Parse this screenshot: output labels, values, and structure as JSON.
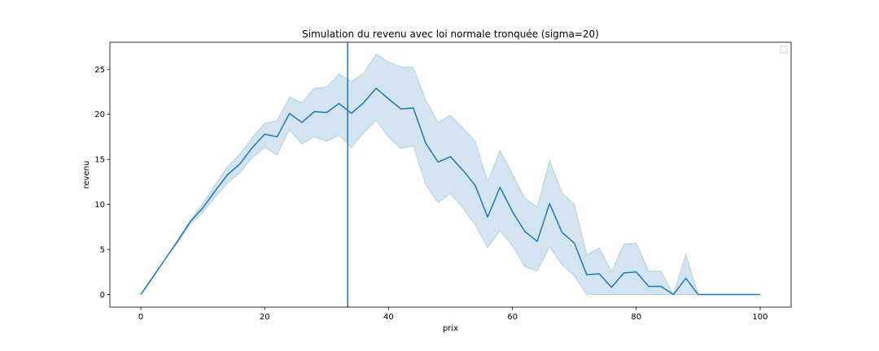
{
  "chart_data": {
    "type": "line",
    "title": "Simulation du revenu avec loi normale tronquée (sigma=20)",
    "xlabel": "prix",
    "ylabel": "revenu",
    "xlim": [
      -5,
      105
    ],
    "ylim": [
      -1.4,
      28
    ],
    "xticks": [
      0,
      20,
      40,
      60,
      80,
      100
    ],
    "yticks": [
      0,
      5,
      10,
      15,
      20,
      25
    ],
    "grid": false,
    "legend": "top-right, empty",
    "vline_x": 33.4,
    "colors": {
      "line": "#1f77b4",
      "band": "#1f77b4",
      "band_opacity": 0.2,
      "vline": "#1f77b4"
    },
    "series": [
      {
        "x": [
          0,
          2,
          4,
          6,
          8,
          10,
          12,
          14,
          16,
          18,
          20,
          22,
          24,
          26,
          28,
          30,
          32,
          34,
          36,
          38,
          40,
          42,
          44,
          46,
          48,
          50,
          52,
          54,
          56,
          58,
          60,
          62,
          64,
          66,
          68,
          70,
          72,
          74,
          76,
          78,
          80,
          82,
          84,
          86,
          88,
          90,
          92,
          94,
          96,
          98,
          100
        ],
        "y": [
          0,
          2.0,
          4.0,
          6.0,
          8.1,
          9.6,
          11.5,
          13.3,
          14.5,
          16.3,
          17.8,
          17.5,
          20.1,
          19.1,
          20.3,
          20.2,
          21.2,
          20.1,
          21.3,
          22.9,
          21.7,
          20.6,
          20.7,
          16.8,
          14.7,
          15.3,
          13.8,
          12.1,
          8.6,
          11.9,
          9.2,
          7.0,
          5.9,
          10.1,
          6.9,
          5.7,
          2.2,
          2.3,
          0.8,
          2.4,
          2.5,
          0.9,
          0.9,
          0.0,
          1.8,
          0.0,
          0.0,
          0.0,
          0.0,
          0.0,
          0.0
        ],
        "lower": [
          0,
          2.0,
          4.0,
          5.8,
          7.8,
          9.1,
          10.8,
          12.4,
          13.5,
          15.2,
          16.3,
          15.5,
          18.3,
          16.7,
          17.5,
          17.0,
          17.7,
          16.3,
          18.0,
          19.3,
          17.5,
          16.2,
          16.5,
          12.2,
          10.2,
          11.2,
          9.6,
          7.7,
          5.2,
          7.1,
          5.4,
          3.1,
          2.6,
          5.3,
          3.3,
          2.1,
          0.0,
          0.0,
          0.0,
          0.0,
          0.0,
          0.0,
          0.0,
          0.0,
          0.0,
          0.0,
          0.0,
          0.0,
          0.0,
          0.0,
          0.0
        ],
        "upper": [
          0,
          2.0,
          4.0,
          6.1,
          8.2,
          10.1,
          12.2,
          14.2,
          15.6,
          17.4,
          19.0,
          19.3,
          21.9,
          21.3,
          22.9,
          23.0,
          24.5,
          23.6,
          24.6,
          26.7,
          25.8,
          25.3,
          25.2,
          21.6,
          19.1,
          19.9,
          18.5,
          17.0,
          12.5,
          16.0,
          13.4,
          10.7,
          9.7,
          14.9,
          11.3,
          10.0,
          4.4,
          5.2,
          2.5,
          5.6,
          5.7,
          2.6,
          2.6,
          0.0,
          4.5,
          0.0,
          0.0,
          0.0,
          0.0,
          0.0,
          0.0
        ]
      }
    ]
  }
}
